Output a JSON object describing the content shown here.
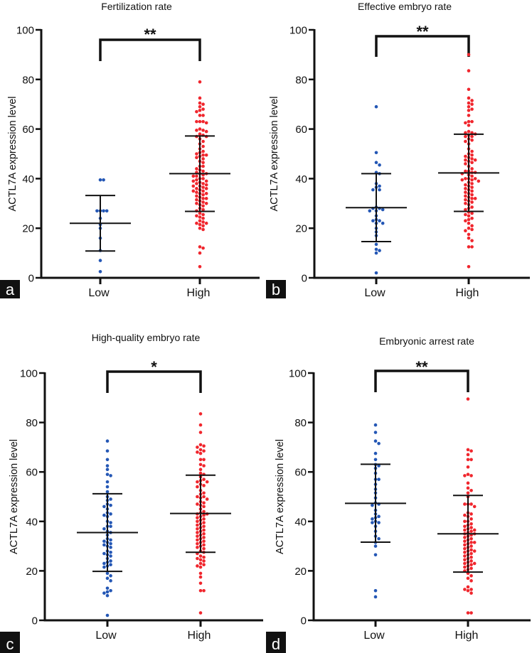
{
  "chart_data": [
    {
      "type": "scatter",
      "panel": "a",
      "title": "Fertilization rate",
      "xlabel": "",
      "ylabel": "ACTL7A expression level",
      "ylim": [
        0,
        100
      ],
      "yticks": [
        "0",
        "20",
        "40",
        "60",
        "80",
        "100"
      ],
      "categories": [
        "Low",
        "High"
      ],
      "significance": "**",
      "colors": {
        "Low": "#2457b5",
        "High": "#f0262d"
      },
      "series": [
        {
          "name": "Low",
          "mean": 22,
          "sd_upper": 33.2,
          "sd_lower": 10.8,
          "values": [
            39.5,
            39.5,
            27,
            27,
            27,
            27,
            24,
            21.5,
            20,
            16,
            11,
            7,
            2.5
          ]
        },
        {
          "name": "High",
          "mean": 42,
          "sd_upper": 57.2,
          "sd_lower": 26.8,
          "values": [
            79,
            72.5,
            70.5,
            70,
            69,
            68,
            67.5,
            67,
            65.5,
            65.5,
            63,
            63,
            63,
            62.5,
            60,
            59.5,
            59.5,
            59,
            58,
            57.5,
            57,
            57,
            56,
            55,
            54,
            53,
            52,
            51,
            50.5,
            50,
            49.5,
            49.5,
            49,
            48.5,
            48,
            47,
            46.5,
            45,
            45,
            44,
            43.5,
            43,
            42.5,
            42,
            42,
            41.5,
            41,
            41,
            40,
            40,
            39.5,
            39,
            39,
            38.5,
            38,
            38,
            37.5,
            37,
            37,
            36.5,
            36,
            36,
            35.5,
            35,
            35,
            34.5,
            34,
            34,
            33.5,
            33,
            32.5,
            32,
            32,
            31.5,
            31,
            30.5,
            30,
            30,
            29.5,
            29,
            28,
            27.5,
            27,
            26,
            25.5,
            25,
            24.5,
            24,
            23,
            22.5,
            22,
            22,
            21.5,
            21,
            20,
            19.5,
            12.5,
            12,
            10,
            4.5
          ]
        }
      ]
    },
    {
      "type": "scatter",
      "panel": "b",
      "title": "Effective embryo rate",
      "xlabel": "",
      "ylabel": "ACTL7A expression level",
      "ylim": [
        0,
        100
      ],
      "yticks": [
        "0",
        "20",
        "40",
        "60",
        "80",
        "100"
      ],
      "categories": [
        "Low",
        "High"
      ],
      "significance": "**",
      "colors": {
        "Low": "#2457b5",
        "High": "#f0262d"
      },
      "series": [
        {
          "name": "Low",
          "mean": 28.3,
          "sd_upper": 42,
          "sd_lower": 14.6,
          "values": [
            69,
            50.5,
            46.5,
            45.5,
            42.5,
            42,
            38,
            37,
            36.5,
            35.5,
            35.5,
            28.5,
            28,
            28,
            27,
            27,
            27.5,
            25,
            23.5,
            23,
            23,
            22,
            22,
            20,
            18.5,
            17,
            13.5,
            11,
            11.5,
            10,
            2
          ]
        },
        {
          "name": "High",
          "mean": 42.3,
          "sd_upper": 57.9,
          "sd_lower": 26.8,
          "values": [
            90,
            83.5,
            76,
            72.5,
            71.5,
            70.5,
            70,
            69,
            68,
            67.5,
            65.5,
            63,
            63,
            62.5,
            61.5,
            59,
            58.5,
            58.5,
            58,
            57.5,
            57,
            57,
            56,
            55.5,
            55,
            54,
            52,
            51,
            50,
            49.5,
            49,
            48.5,
            48,
            47.5,
            47.5,
            47,
            46.5,
            46,
            45,
            44,
            43,
            43,
            42.5,
            42.5,
            42,
            41.5,
            41,
            40,
            40,
            40,
            39.5,
            39.5,
            39,
            38.5,
            38,
            37.5,
            37,
            36.5,
            36,
            35.5,
            35,
            34.5,
            34,
            33.5,
            33,
            32.5,
            32,
            32,
            31.5,
            31,
            30.5,
            30,
            29.5,
            28.5,
            28,
            27.5,
            26.5,
            26,
            25.5,
            25,
            24,
            23.5,
            23,
            22,
            21,
            20,
            19.5,
            19,
            17.5,
            16,
            15,
            12.5,
            12.5,
            4.5
          ]
        }
      ]
    },
    {
      "type": "scatter",
      "panel": "c",
      "title": "High-quality embryo rate",
      "xlabel": "",
      "ylabel": "ACTL7A expression level",
      "ylim": [
        0,
        100
      ],
      "yticks": [
        "0",
        "20",
        "40",
        "60",
        "80",
        "100"
      ],
      "categories": [
        "Low",
        "High"
      ],
      "significance": "*",
      "colors": {
        "Low": "#2457b5",
        "High": "#f0262d"
      },
      "series": [
        {
          "name": "Low",
          "mean": 35.5,
          "sd_upper": 51.2,
          "sd_lower": 19.8,
          "values": [
            72.5,
            68.5,
            65,
            62.5,
            61,
            59,
            58.5,
            56,
            54,
            52,
            50,
            49,
            48.5,
            47,
            46.5,
            46,
            45,
            43.5,
            43,
            42.5,
            42,
            40,
            39.5,
            38,
            38,
            37,
            36,
            35.5,
            34.5,
            33,
            32.5,
            32,
            31.5,
            31,
            30.5,
            30,
            29.5,
            28,
            27.5,
            27,
            26.5,
            26,
            25,
            24,
            23.5,
            23,
            22.5,
            22,
            21.5,
            19,
            18,
            17,
            16,
            13,
            12,
            11,
            11.5,
            10,
            2
          ]
        },
        {
          "name": "High",
          "mean": 43.2,
          "sd_upper": 58.7,
          "sd_lower": 27.5,
          "values": [
            83.5,
            79,
            76,
            71,
            70.5,
            70,
            69,
            68.5,
            68,
            67.5,
            65,
            65,
            63,
            62.5,
            61,
            59.5,
            59,
            58,
            57,
            56.5,
            56,
            56,
            55,
            54.5,
            54,
            52.5,
            51.5,
            51,
            50,
            50,
            49.5,
            49,
            48,
            47.5,
            47,
            46.5,
            46,
            45,
            44,
            43.5,
            43,
            43,
            42.5,
            42,
            41.5,
            41,
            40.5,
            40,
            39.5,
            39,
            38.5,
            38,
            37.5,
            37,
            36.5,
            36,
            35.5,
            35,
            34.5,
            34,
            33.5,
            33,
            32.5,
            32,
            31.5,
            31,
            30.5,
            30,
            29.5,
            29,
            28,
            27.5,
            27,
            26,
            25.5,
            25,
            24.5,
            24,
            23,
            22.5,
            22,
            21.5,
            19,
            17.5,
            15,
            12,
            12,
            3
          ]
        }
      ]
    },
    {
      "type": "scatter",
      "panel": "d",
      "title": "Embryonic arrest rate",
      "xlabel": "",
      "ylabel": "ACTL7A expression level",
      "ylim": [
        0,
        100
      ],
      "yticks": [
        "0",
        "20",
        "40",
        "60",
        "80",
        "100"
      ],
      "categories": [
        "Low",
        "High"
      ],
      "significance": "**",
      "colors": {
        "Low": "#2457b5",
        "High": "#f0262d"
      },
      "series": [
        {
          "name": "Low",
          "mean": 47.3,
          "sd_upper": 63.1,
          "sd_lower": 31.6,
          "values": [
            79,
            76,
            72.5,
            71.5,
            67.5,
            65,
            63,
            62.5,
            61.5,
            59.5,
            57,
            57,
            55,
            53,
            51.5,
            49.5,
            47.5,
            47,
            46.5,
            44.5,
            43,
            42,
            41.5,
            41,
            40,
            39.5,
            39.5,
            38,
            36,
            34,
            33,
            31.5,
            30,
            26.5,
            12,
            9.5
          ]
        },
        {
          "name": "High",
          "mean": 35,
          "sd_upper": 50.5,
          "sd_lower": 19.5,
          "values": [
            89.5,
            69,
            68.5,
            67,
            65,
            65,
            62,
            59,
            58.5,
            58.5,
            55.5,
            53.5,
            52.5,
            51.5,
            50,
            47,
            47,
            47,
            46,
            43.5,
            43,
            42.5,
            42,
            41,
            40,
            40,
            39,
            38.5,
            38,
            37.5,
            37,
            36.5,
            36.5,
            36,
            35.5,
            35,
            35,
            34.5,
            34,
            33.5,
            33,
            32.5,
            32,
            31.5,
            31.5,
            31,
            30.5,
            30,
            29.5,
            29,
            28.5,
            28,
            28,
            27.5,
            27,
            26.5,
            26,
            25.5,
            25,
            24.5,
            24,
            23.5,
            23,
            23,
            22.5,
            22,
            21.5,
            21,
            20.5,
            20,
            19,
            18,
            17,
            16,
            13.5,
            12.5,
            12.5,
            12,
            11,
            3,
            3
          ]
        }
      ]
    }
  ]
}
